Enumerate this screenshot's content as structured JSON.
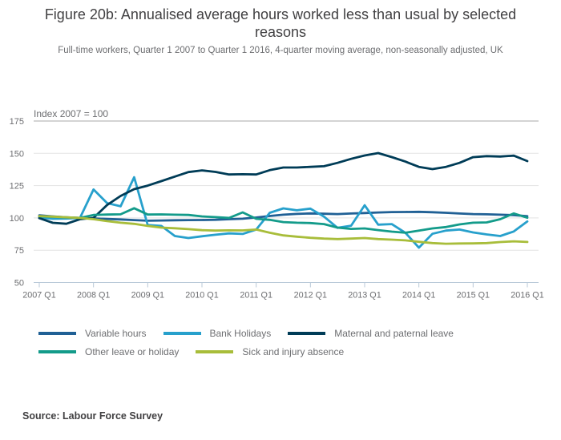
{
  "title": "Figure 20b: Annualised average hours worked less than usual by selected reasons",
  "subtitle": "Full-time workers, Quarter 1 2007 to Quarter 1 2016, 4-quarter moving average, non-seasonally adjusted, UK",
  "source": "Source: Labour Force Survey",
  "chart_data": {
    "type": "line",
    "axis_note": "Index 2007 = 100",
    "ylim": [
      50,
      175
    ],
    "y_ticks": [
      50,
      75,
      100,
      125,
      150,
      175
    ],
    "x_tick_labels": [
      "2007 Q1",
      "2008 Q1",
      "2009 Q1",
      "2010 Q1",
      "2011 Q1",
      "2012 Q1",
      "2013 Q1",
      "2014 Q1",
      "2015 Q1",
      "2016 Q1"
    ],
    "x_points_per_tick": 4,
    "grid": "horizontal",
    "legend_position": "bottom",
    "palette": {
      "grid_line": "#e3e3e3",
      "top_rule": "#a8a8a8",
      "axis_line": "#b9c9d8",
      "tick_text": "#6d6e71"
    },
    "series": [
      {
        "name": "Variable hours",
        "color": "#206095",
        "legend_row": 1,
        "values": [
          102.0,
          101.2,
          100.5,
          100.0,
          99.6,
          99.2,
          98.8,
          98.3,
          97.8,
          98.0,
          98.2,
          98.3,
          98.4,
          98.6,
          99.0,
          99.4,
          100.3,
          101.5,
          102.5,
          103.1,
          103.5,
          103.2,
          103.0,
          103.4,
          103.8,
          104.2,
          104.5,
          104.6,
          104.7,
          104.4,
          104.0,
          103.4,
          103.0,
          102.8,
          102.5,
          102.2,
          101.3
        ]
      },
      {
        "name": "Bank Holidays",
        "color": "#27a0cc",
        "legend_row": 1,
        "values": [
          100.4,
          99.3,
          99.5,
          100.0,
          122.0,
          111.5,
          109.0,
          131.5,
          94.5,
          93.8,
          86.0,
          84.4,
          85.8,
          87.0,
          88.0,
          87.6,
          91.0,
          104.0,
          107.4,
          105.9,
          107.2,
          101.0,
          92.3,
          94.0,
          109.8,
          94.8,
          95.2,
          88.5,
          77.0,
          87.7,
          90.2,
          91.0,
          88.8,
          87.2,
          86.0,
          89.5,
          97.3
        ]
      },
      {
        "name": "Maternal and paternal leave",
        "color": "#003c57",
        "legend_row": 1,
        "values": [
          99.8,
          96.2,
          95.5,
          99.0,
          100.0,
          110.0,
          117.0,
          122.3,
          125.0,
          128.5,
          132.0,
          135.5,
          136.8,
          135.6,
          133.6,
          133.8,
          133.6,
          137.0,
          139.0,
          139.0,
          139.5,
          140.0,
          142.6,
          145.7,
          148.3,
          150.2,
          147.1,
          143.6,
          139.5,
          137.8,
          139.5,
          142.6,
          147.0,
          147.8,
          147.5,
          148.2,
          144.0
        ]
      },
      {
        "name": "Other leave or holiday",
        "color": "#139b8a",
        "legend_row": 2,
        "values": [
          101.3,
          100.8,
          100.4,
          100.0,
          102.3,
          102.6,
          102.8,
          107.5,
          102.6,
          102.7,
          102.5,
          102.3,
          101.2,
          100.6,
          100.0,
          104.3,
          99.3,
          98.5,
          96.8,
          96.3,
          96.0,
          95.2,
          92.5,
          91.5,
          91.9,
          90.6,
          89.4,
          88.5,
          90.2,
          91.9,
          92.9,
          95.0,
          96.3,
          96.5,
          99.0,
          103.5,
          100.1
        ]
      },
      {
        "name": "Sick and injury absence",
        "color": "#a8bd3a",
        "legend_row": 2,
        "values": [
          101.4,
          101.0,
          100.5,
          100.0,
          99.0,
          97.5,
          96.3,
          95.4,
          93.8,
          92.5,
          92.0,
          91.3,
          90.5,
          90.2,
          90.4,
          90.3,
          91.0,
          88.5,
          86.5,
          85.5,
          84.6,
          84.0,
          83.6,
          84.0,
          84.4,
          83.6,
          83.2,
          82.6,
          81.5,
          80.5,
          80.0,
          80.2,
          80.3,
          80.5,
          81.3,
          81.9,
          81.4
        ]
      }
    ]
  }
}
